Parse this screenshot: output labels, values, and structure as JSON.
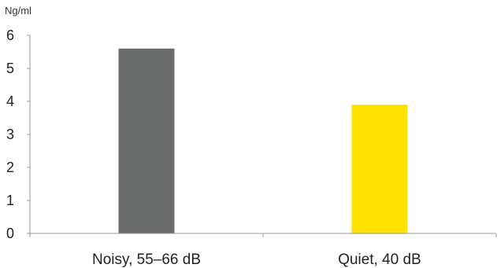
{
  "chart_data": {
    "type": "bar",
    "ylabel": "Ng/ml",
    "categories": [
      "Noisy, 55–66 dB",
      "Quiet, 40 dB"
    ],
    "values": [
      5.6,
      3.9
    ],
    "colors": [
      "#6b6c6c",
      "#ffe100"
    ],
    "ylim": [
      0,
      6
    ],
    "yticks": [
      "0",
      "1",
      "2",
      "3",
      "4",
      "5",
      "6"
    ],
    "grid": false,
    "legend": "none"
  }
}
